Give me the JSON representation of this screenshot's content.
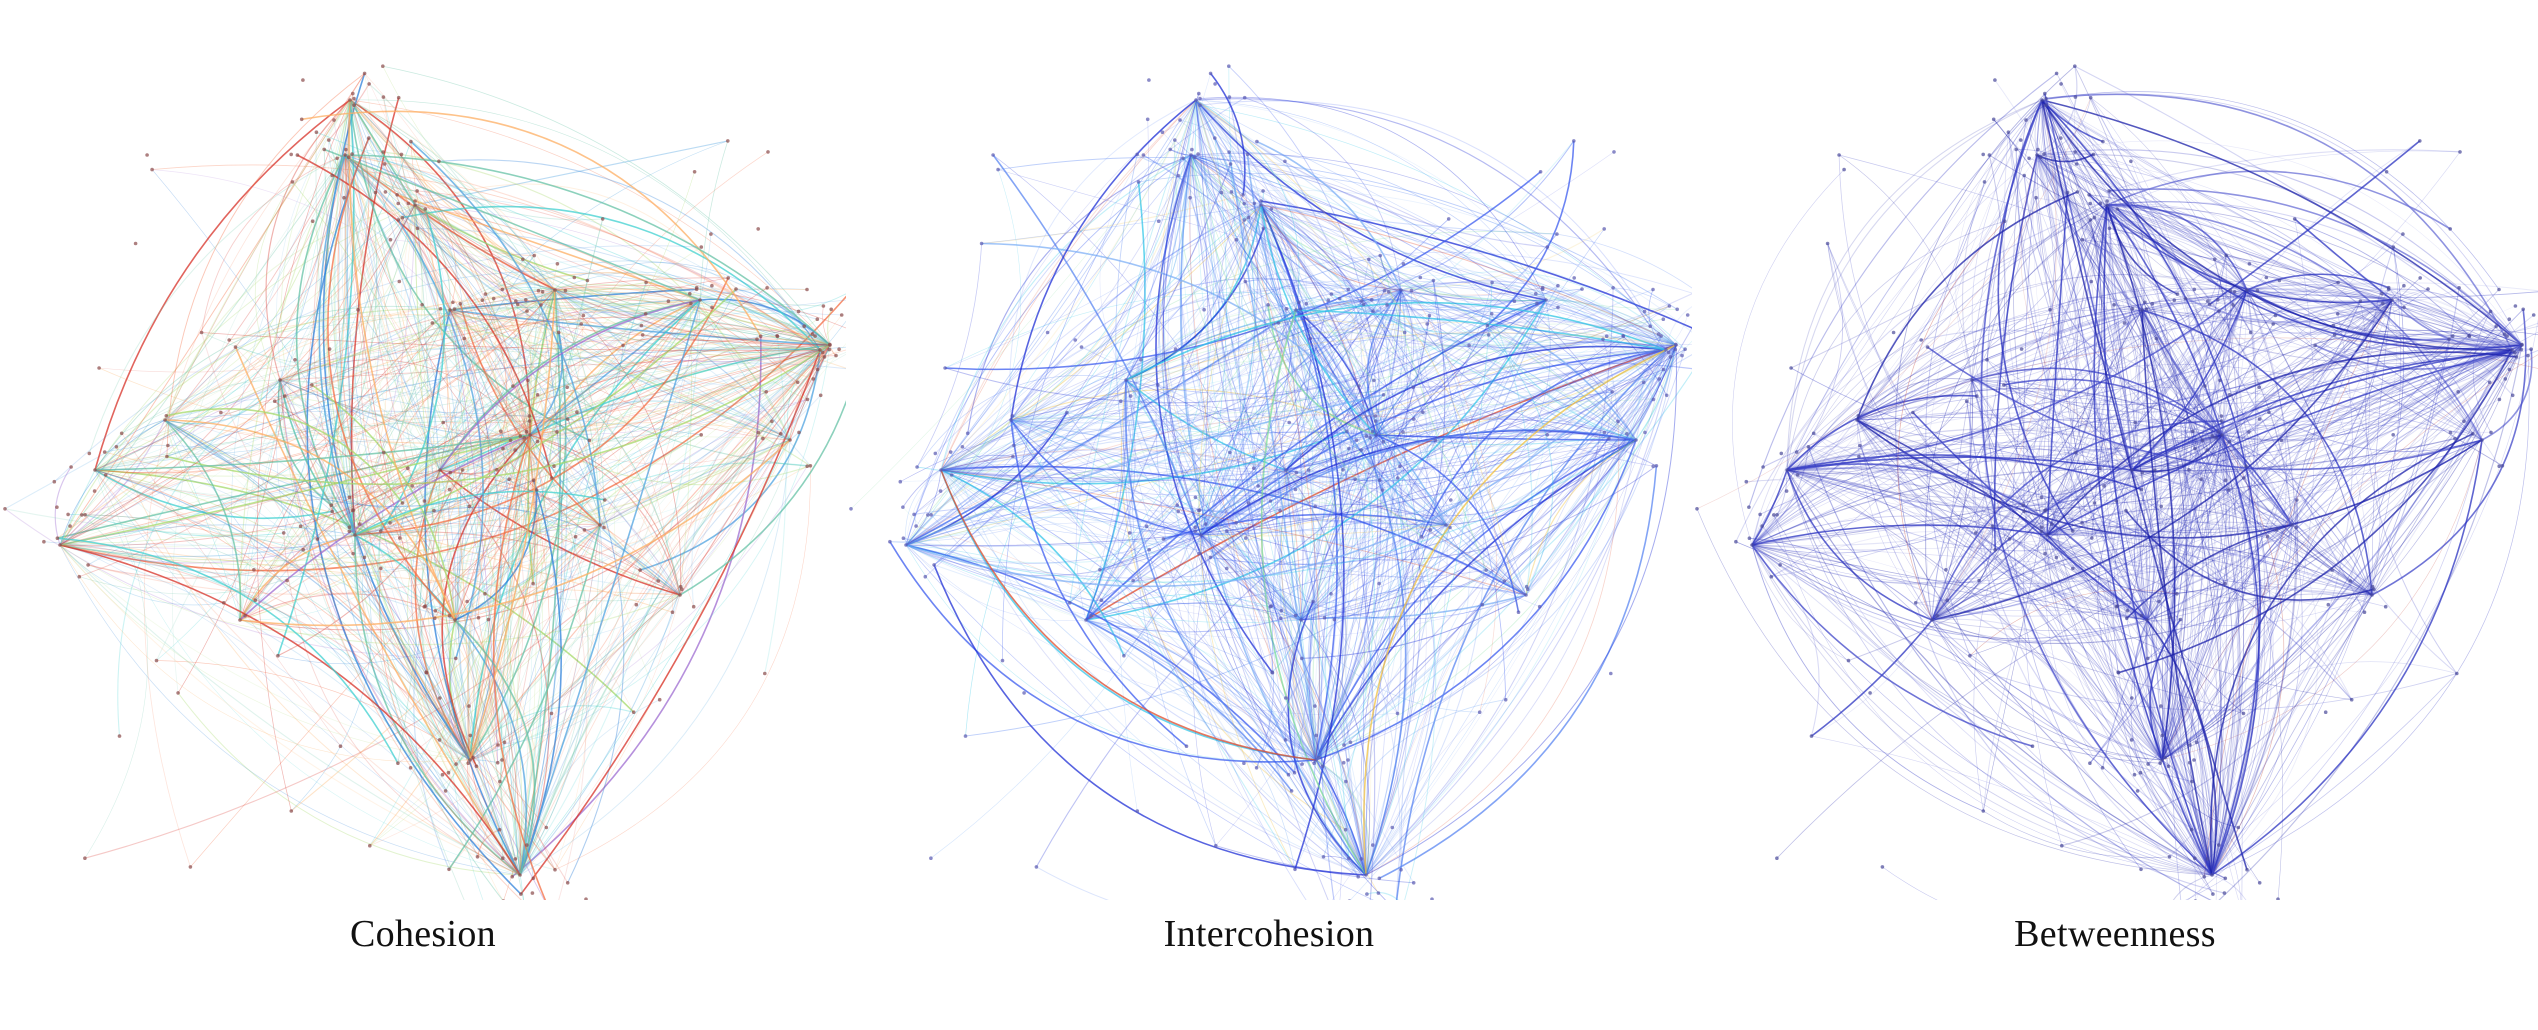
{
  "panels": [
    {
      "caption": "Cohesion",
      "edge_palette": [
        "#d73027",
        "#f46d43",
        "#fdae61",
        "#a6d96a",
        "#66c2a5",
        "#3fd0d0",
        "#4fa3e0",
        "#2c7fd9",
        "#9e6bd0"
      ],
      "palette_weights": [
        0.16,
        0.1,
        0.1,
        0.12,
        0.14,
        0.12,
        0.1,
        0.1,
        0.06
      ],
      "node_color": "#8a4a4a"
    },
    {
      "caption": "Intercohesion",
      "edge_palette": [
        "#1f2fd6",
        "#3b5bef",
        "#5a86f2",
        "#7fb0f5",
        "#35c7e8",
        "#7fdc9a",
        "#f0c040",
        "#e04a2a"
      ],
      "palette_weights": [
        0.24,
        0.22,
        0.2,
        0.14,
        0.1,
        0.04,
        0.03,
        0.03
      ],
      "node_color": "#5a5ab0"
    },
    {
      "caption": "Betweenness",
      "edge_palette": [
        "#1a1fa8",
        "#2a31c0",
        "#3f46c8",
        "#6a6fd6",
        "#9a9ee4",
        "#c0392b"
      ],
      "palette_weights": [
        0.3,
        0.26,
        0.2,
        0.14,
        0.09,
        0.01
      ],
      "node_color": "#4a4a9a"
    }
  ]
}
